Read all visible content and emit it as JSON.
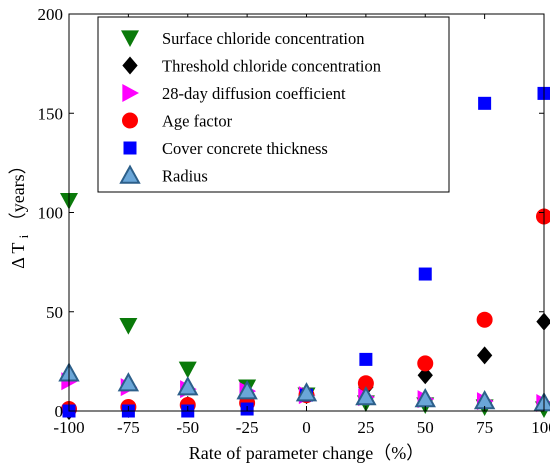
{
  "chart_data": {
    "type": "scatter",
    "xlabel": "Rate of parameter change（%）",
    "ylabel_main": "Δ T",
    "ylabel_sub": "i",
    "ylabel_unit": "（years）",
    "xlim": [
      -100,
      100
    ],
    "ylim": [
      0,
      200
    ],
    "xticks": [
      -100,
      -75,
      -50,
      -25,
      0,
      25,
      50,
      75,
      100
    ],
    "yticks": [
      0,
      50,
      100,
      150,
      200
    ],
    "grid": false,
    "legend_position": "top-left",
    "series": [
      {
        "name": "Surface chloride concentration",
        "marker": "triangle-down",
        "color": "#0a7a0a",
        "points": [
          [
            -100,
            106
          ],
          [
            -75,
            43
          ],
          [
            -50,
            21
          ],
          [
            -25,
            12
          ],
          [
            0,
            8
          ],
          [
            25,
            4
          ],
          [
            50,
            3
          ],
          [
            75,
            2
          ],
          [
            100,
            1
          ]
        ]
      },
      {
        "name": "Threshold chloride concentration",
        "marker": "diamond",
        "color": "#000000",
        "points": [
          [
            -100,
            0
          ],
          [
            -75,
            1
          ],
          [
            -50,
            3
          ],
          [
            -25,
            5
          ],
          [
            0,
            8
          ],
          [
            25,
            12
          ],
          [
            50,
            18
          ],
          [
            75,
            28
          ],
          [
            100,
            45
          ]
        ]
      },
      {
        "name": "28-day diffusion coefficient",
        "marker": "triangle-right",
        "color": "#ff00ff",
        "points": [
          [
            -100,
            15
          ],
          [
            -75,
            12
          ],
          [
            -50,
            11
          ],
          [
            -25,
            10
          ],
          [
            0,
            8
          ],
          [
            25,
            7
          ],
          [
            50,
            6
          ],
          [
            75,
            5
          ],
          [
            100,
            4
          ]
        ]
      },
      {
        "name": "Age factor",
        "marker": "circle",
        "color": "#ff0000",
        "points": [
          [
            -100,
            1
          ],
          [
            -75,
            2
          ],
          [
            -50,
            3
          ],
          [
            -25,
            4
          ],
          [
            0,
            8
          ],
          [
            25,
            14
          ],
          [
            50,
            24
          ],
          [
            75,
            46
          ],
          [
            100,
            98
          ]
        ]
      },
      {
        "name": "Cover concrete thickness",
        "marker": "square",
        "color": "#0000ff",
        "points": [
          [
            -100,
            0
          ],
          [
            -75,
            0
          ],
          [
            -50,
            0
          ],
          [
            -25,
            1
          ],
          [
            0,
            8
          ],
          [
            25,
            26
          ],
          [
            50,
            69
          ],
          [
            75,
            155
          ],
          [
            100,
            160
          ]
        ]
      },
      {
        "name": "Radius",
        "marker": "triangle-up",
        "color": "#6aa6d8",
        "edge": "#2c5f8a",
        "points": [
          [
            -100,
            19
          ],
          [
            -75,
            14
          ],
          [
            -50,
            12
          ],
          [
            -25,
            10
          ],
          [
            0,
            9
          ],
          [
            25,
            7
          ],
          [
            50,
            6
          ],
          [
            75,
            5
          ],
          [
            100,
            4
          ]
        ]
      }
    ]
  }
}
